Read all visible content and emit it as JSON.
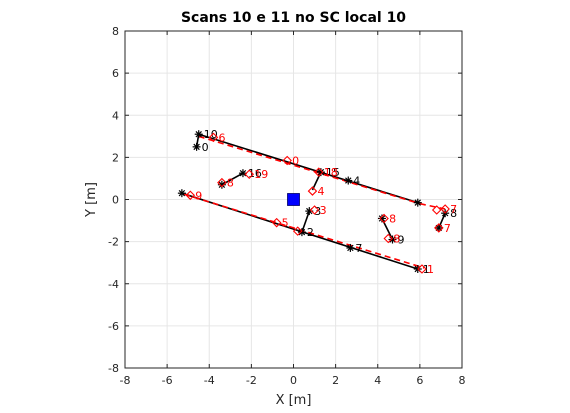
{
  "chart_data": {
    "type": "scatter",
    "title": "Scans 10 e 11 no SC local 10",
    "xlabel": "X [m]",
    "ylabel": "Y [m]",
    "xlim": [
      -8,
      8
    ],
    "ylim": [
      -8,
      8
    ],
    "xticks": [
      "-8",
      "-6",
      "-4",
      "-2",
      "0",
      "2",
      "4",
      "6",
      "8"
    ],
    "yticks": [
      "-8",
      "-6",
      "-4",
      "-2",
      "0",
      "2",
      "4",
      "6",
      "8"
    ],
    "grid": true,
    "colors": {
      "scan_a": "#000000",
      "scan_b": "#ff0000",
      "origin": "#0000ff",
      "grid": "#e6e6e6",
      "axis": "#262626"
    },
    "origin_marker": {
      "x": 0,
      "y": 0
    },
    "series": [
      {
        "marker": "asterisk",
        "color": "#000000",
        "points": [
          {
            "label": "0",
            "x": -4.6,
            "y": 2.5
          },
          {
            "label": "10",
            "x": -4.5,
            "y": 3.1
          },
          {
            "label": "16",
            "x": -2.4,
            "y": 1.25
          },
          {
            "label": "15",
            "x": 1.3,
            "y": 1.3
          },
          {
            "label": "4",
            "x": 2.6,
            "y": 0.9
          },
          {
            "label": "3",
            "x": 0.75,
            "y": -0.55
          },
          {
            "label": "2",
            "x": 0.4,
            "y": -1.55
          },
          {
            "label": "7",
            "x": 2.7,
            "y": -2.3
          },
          {
            "label": "9",
            "x": 4.7,
            "y": -1.9
          },
          {
            "label": "1",
            "x": 5.9,
            "y": -3.3
          },
          {
            "label": "8",
            "x": 7.2,
            "y": -0.65
          },
          {
            "label": "",
            "x": 5.9,
            "y": -0.15
          },
          {
            "label": "",
            "x": -5.3,
            "y": 0.3
          },
          {
            "label": "",
            "x": -3.4,
            "y": 0.7
          },
          {
            "label": "",
            "x": 4.2,
            "y": -0.9
          },
          {
            "label": "",
            "x": 6.9,
            "y": -1.35
          }
        ],
        "segments": [
          [
            [
              -4.6,
              2.5
            ],
            [
              -4.5,
              3.1
            ]
          ],
          [
            [
              -4.5,
              3.1
            ],
            [
              5.9,
              -0.15
            ]
          ],
          [
            [
              -5.3,
              0.3
            ],
            [
              5.9,
              -3.3
            ]
          ],
          [
            [
              -3.4,
              0.7
            ],
            [
              -2.4,
              1.25
            ]
          ],
          [
            [
              1.3,
              1.3
            ],
            [
              0.9,
              0.45
            ]
          ],
          [
            [
              0.75,
              -0.55
            ],
            [
              0.4,
              -1.55
            ]
          ],
          [
            [
              4.2,
              -0.9
            ],
            [
              4.7,
              -1.9
            ]
          ],
          [
            [
              7.2,
              -0.65
            ],
            [
              6.9,
              -1.35
            ]
          ]
        ]
      },
      {
        "marker": "diamond",
        "color": "#ff0000",
        "points": [
          {
            "label": "6",
            "x": -3.8,
            "y": 2.95
          },
          {
            "label": "4",
            "x": 0.9,
            "y": 0.4
          },
          {
            "label": "18",
            "x": 1.2,
            "y": 1.3
          },
          {
            "label": "3",
            "x": 1.0,
            "y": -0.5
          },
          {
            "label": "5",
            "x": -0.8,
            "y": -1.1
          },
          {
            "label": "1",
            "x": 6.1,
            "y": -3.3
          },
          {
            "label": "7",
            "x": 7.2,
            "y": -0.45
          },
          {
            "label": "9",
            "x": -4.9,
            "y": 0.2
          },
          {
            "label": "8",
            "x": -3.4,
            "y": 0.8
          },
          {
            "label": "19",
            "x": -2.1,
            "y": 1.2
          },
          {
            "label": "0",
            "x": -0.3,
            "y": 1.85
          },
          {
            "label": "8",
            "x": 4.3,
            "y": -0.9
          },
          {
            "label": "8",
            "x": 4.5,
            "y": -1.85
          },
          {
            "label": "7",
            "x": 6.9,
            "y": -1.35
          },
          {
            "label": "",
            "x": 6.8,
            "y": -0.5
          },
          {
            "label": "",
            "x": 0.2,
            "y": -1.5
          }
        ],
        "segments": [
          [
            [
              -4.5,
              3.0
            ],
            [
              6.0,
              -0.2
            ]
          ],
          [
            [
              6.0,
              -0.2
            ],
            [
              7.2,
              -0.45
            ]
          ],
          [
            [
              -5.2,
              0.25
            ],
            [
              6.2,
              -3.25
            ]
          ]
        ]
      }
    ]
  }
}
